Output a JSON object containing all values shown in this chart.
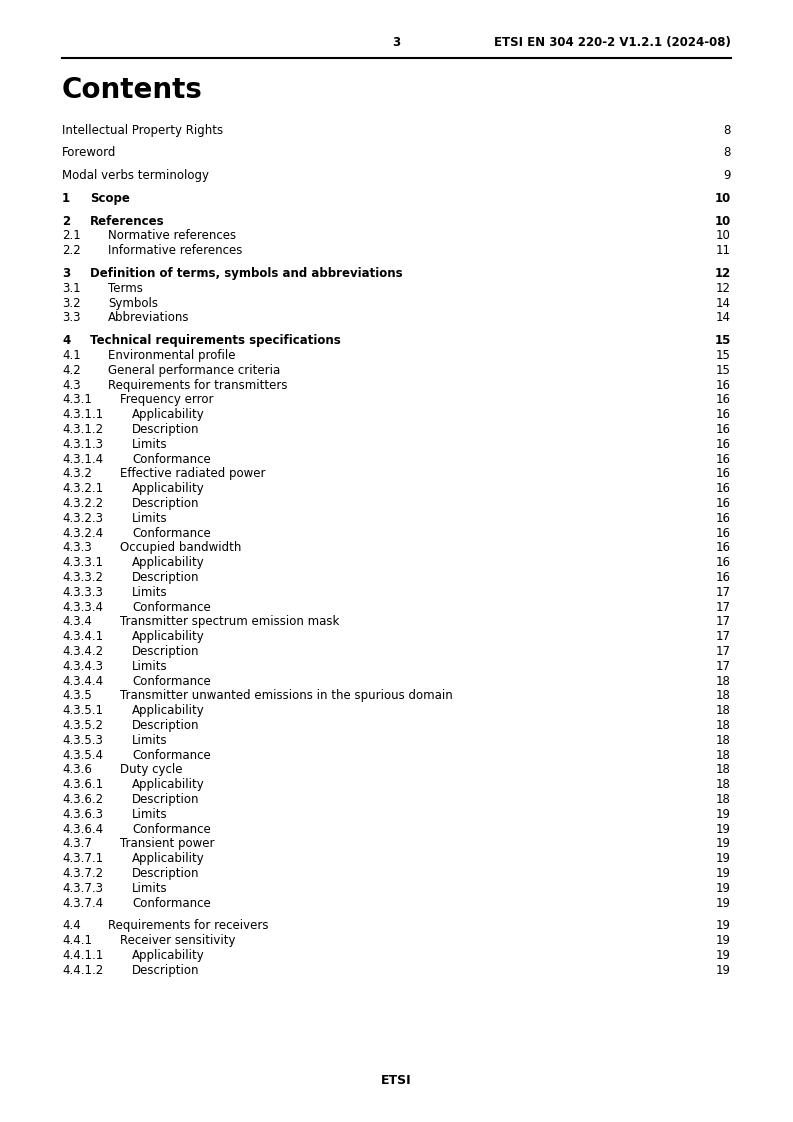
{
  "page_number": "3",
  "header_right": "ETSI EN 304 220-2 V1.2.1 (2024-08)",
  "title": "Contents",
  "footer": "ETSI",
  "toc_entries": [
    {
      "num": "",
      "indent": 0,
      "text": "Intellectual Property Rights",
      "page": "8"
    },
    {
      "num": "",
      "indent": 0,
      "text": "Foreword",
      "page": "8"
    },
    {
      "num": "",
      "indent": 0,
      "text": "Modal verbs terminology",
      "page": "9"
    },
    {
      "num": "1",
      "indent": 0,
      "text": "Scope",
      "page": "10"
    },
    {
      "num": "2",
      "indent": 0,
      "text": "References",
      "page": "10"
    },
    {
      "num": "2.1",
      "indent": 1,
      "text": "Normative references",
      "page": "10"
    },
    {
      "num": "2.2",
      "indent": 1,
      "text": "Informative references",
      "page": "11"
    },
    {
      "num": "3",
      "indent": 0,
      "text": "Definition of terms, symbols and abbreviations",
      "page": "12"
    },
    {
      "num": "3.1",
      "indent": 1,
      "text": "Terms",
      "page": "12"
    },
    {
      "num": "3.2",
      "indent": 1,
      "text": "Symbols",
      "page": "14"
    },
    {
      "num": "3.3",
      "indent": 1,
      "text": "Abbreviations",
      "page": "14"
    },
    {
      "num": "4",
      "indent": 0,
      "text": "Technical requirements specifications",
      "page": "15"
    },
    {
      "num": "4.1",
      "indent": 1,
      "text": "Environmental profile",
      "page": "15"
    },
    {
      "num": "4.2",
      "indent": 1,
      "text": "General performance criteria",
      "page": "15"
    },
    {
      "num": "4.3",
      "indent": 1,
      "text": "Requirements for transmitters",
      "page": "16"
    },
    {
      "num": "4.3.1",
      "indent": 2,
      "text": "Frequency error",
      "page": "16"
    },
    {
      "num": "4.3.1.1",
      "indent": 3,
      "text": "Applicability",
      "page": "16"
    },
    {
      "num": "4.3.1.2",
      "indent": 3,
      "text": "Description",
      "page": "16"
    },
    {
      "num": "4.3.1.3",
      "indent": 3,
      "text": "Limits",
      "page": "16"
    },
    {
      "num": "4.3.1.4",
      "indent": 3,
      "text": "Conformance",
      "page": "16"
    },
    {
      "num": "4.3.2",
      "indent": 2,
      "text": "Effective radiated power",
      "page": "16"
    },
    {
      "num": "4.3.2.1",
      "indent": 3,
      "text": "Applicability",
      "page": "16"
    },
    {
      "num": "4.3.2.2",
      "indent": 3,
      "text": "Description",
      "page": "16"
    },
    {
      "num": "4.3.2.3",
      "indent": 3,
      "text": "Limits",
      "page": "16"
    },
    {
      "num": "4.3.2.4",
      "indent": 3,
      "text": "Conformance",
      "page": "16"
    },
    {
      "num": "4.3.3",
      "indent": 2,
      "text": "Occupied bandwidth",
      "page": "16"
    },
    {
      "num": "4.3.3.1",
      "indent": 3,
      "text": "Applicability",
      "page": "16"
    },
    {
      "num": "4.3.3.2",
      "indent": 3,
      "text": "Description",
      "page": "16"
    },
    {
      "num": "4.3.3.3",
      "indent": 3,
      "text": "Limits",
      "page": "17"
    },
    {
      "num": "4.3.3.4",
      "indent": 3,
      "text": "Conformance",
      "page": "17"
    },
    {
      "num": "4.3.4",
      "indent": 2,
      "text": "Transmitter spectrum emission mask",
      "page": "17"
    },
    {
      "num": "4.3.4.1",
      "indent": 3,
      "text": "Applicability",
      "page": "17"
    },
    {
      "num": "4.3.4.2",
      "indent": 3,
      "text": "Description",
      "page": "17"
    },
    {
      "num": "4.3.4.3",
      "indent": 3,
      "text": "Limits",
      "page": "17"
    },
    {
      "num": "4.3.4.4",
      "indent": 3,
      "text": "Conformance",
      "page": "18"
    },
    {
      "num": "4.3.5",
      "indent": 2,
      "text": "Transmitter unwanted emissions in the spurious domain",
      "page": "18"
    },
    {
      "num": "4.3.5.1",
      "indent": 3,
      "text": "Applicability",
      "page": "18"
    },
    {
      "num": "4.3.5.2",
      "indent": 3,
      "text": "Description",
      "page": "18"
    },
    {
      "num": "4.3.5.3",
      "indent": 3,
      "text": "Limits",
      "page": "18"
    },
    {
      "num": "4.3.5.4",
      "indent": 3,
      "text": "Conformance",
      "page": "18"
    },
    {
      "num": "4.3.6",
      "indent": 2,
      "text": "Duty cycle",
      "page": "18"
    },
    {
      "num": "4.3.6.1",
      "indent": 3,
      "text": "Applicability",
      "page": "18"
    },
    {
      "num": "4.3.6.2",
      "indent": 3,
      "text": "Description",
      "page": "18"
    },
    {
      "num": "4.3.6.3",
      "indent": 3,
      "text": "Limits",
      "page": "19"
    },
    {
      "num": "4.3.6.4",
      "indent": 3,
      "text": "Conformance",
      "page": "19"
    },
    {
      "num": "4.3.7",
      "indent": 2,
      "text": "Transient power",
      "page": "19"
    },
    {
      "num": "4.3.7.1",
      "indent": 3,
      "text": "Applicability",
      "page": "19"
    },
    {
      "num": "4.3.7.2",
      "indent": 3,
      "text": "Description",
      "page": "19"
    },
    {
      "num": "4.3.7.3",
      "indent": 3,
      "text": "Limits",
      "page": "19"
    },
    {
      "num": "4.3.7.4",
      "indent": 3,
      "text": "Conformance",
      "page": "19"
    },
    {
      "num": "4.4",
      "indent": 1,
      "text": "Requirements for receivers",
      "page": "19"
    },
    {
      "num": "4.4.1",
      "indent": 2,
      "text": "Receiver sensitivity",
      "page": "19"
    },
    {
      "num": "4.4.1.1",
      "indent": 3,
      "text": "Applicability",
      "page": "19"
    },
    {
      "num": "4.4.1.2",
      "indent": 3,
      "text": "Description",
      "page": "19"
    }
  ],
  "bg_color": "#ffffff",
  "text_color": "#000000",
  "title_fontsize": 20,
  "header_fontsize": 8.5,
  "toc_fontsize": 8.5,
  "indent_sizes": [
    0,
    18,
    30,
    42
  ]
}
